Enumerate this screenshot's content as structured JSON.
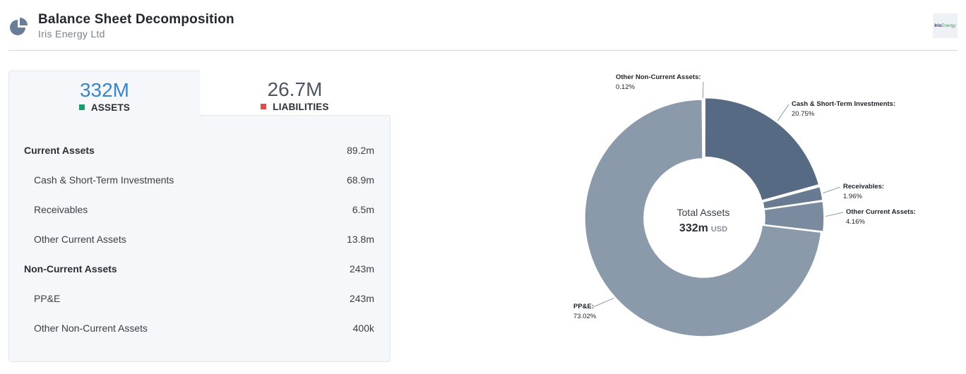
{
  "header": {
    "title": "Balance Sheet Decomposition",
    "subtitle": "Iris Energy Ltd",
    "icon": "pie-chart-icon",
    "logo": {
      "part1": "Iris",
      "part2": "Energy"
    }
  },
  "tabs": [
    {
      "value": "332M",
      "label": "ASSETS",
      "color": "#1a9a6c",
      "active": true
    },
    {
      "value": "26.7M",
      "label": "LIABILITIES",
      "color": "#e04b4b",
      "active": false
    }
  ],
  "table": {
    "rows": [
      {
        "label": "Current Assets",
        "value": "89.2m",
        "group": true
      },
      {
        "label": "Cash & Short-Term Investments",
        "value": "68.9m",
        "group": false
      },
      {
        "label": "Receivables",
        "value": "6.5m",
        "group": false
      },
      {
        "label": "Other Current Assets",
        "value": "13.8m",
        "group": false
      },
      {
        "label": "Non-Current Assets",
        "value": "243m",
        "group": true
      },
      {
        "label": "PP&E",
        "value": "243m",
        "group": false
      },
      {
        "label": "Other Non-Current Assets",
        "value": "400k",
        "group": false
      }
    ]
  },
  "chart_data": {
    "type": "pie",
    "center": {
      "line1": "Total Assets",
      "value": "332m",
      "unit": "USD"
    },
    "slices": [
      {
        "name": "Cash & Short-Term Investments",
        "pct_label": "20.75%",
        "value": 20.75,
        "color": "#566a83"
      },
      {
        "name": "Receivables",
        "pct_label": "1.96%",
        "value": 1.96,
        "color": "#687b93"
      },
      {
        "name": "Other Current Assets",
        "pct_label": "4.16%",
        "value": 4.16,
        "color": "#7a8ba0"
      },
      {
        "name": "PP&E",
        "pct_label": "73.02%",
        "value": 73.02,
        "color": "#8a9aab"
      },
      {
        "name": "Other Non-Current Assets",
        "pct_label": "0.12%",
        "value": 0.12,
        "color": "#8a9aab"
      }
    ]
  }
}
